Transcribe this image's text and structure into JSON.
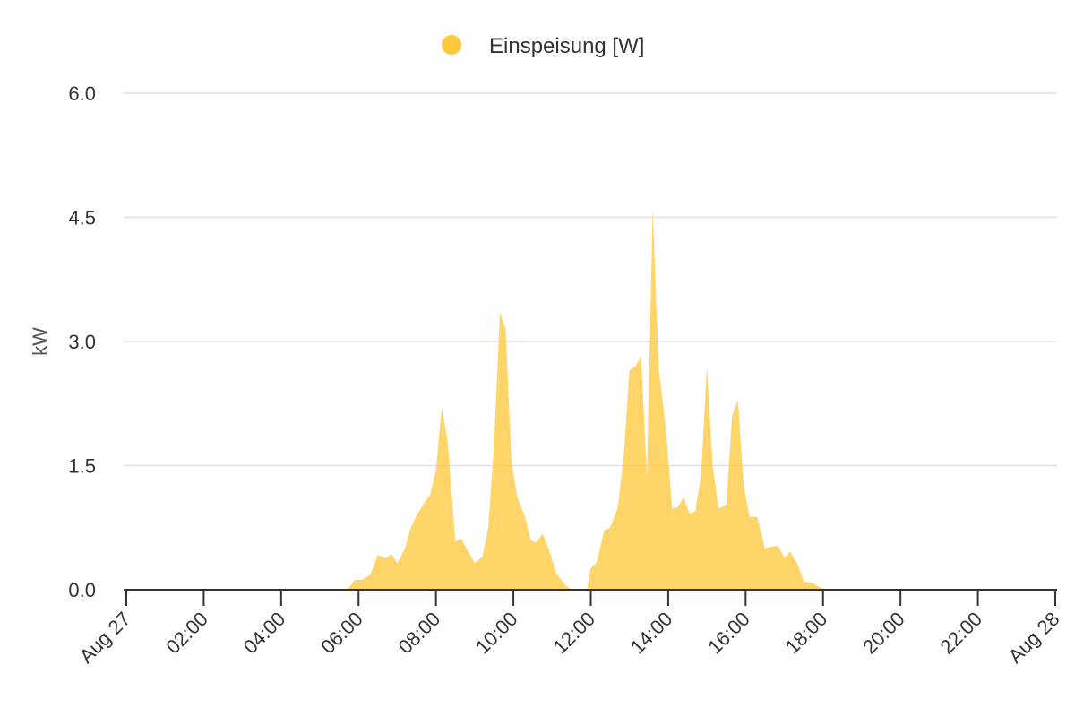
{
  "chart_data": {
    "type": "area",
    "title": "",
    "xlabel": "",
    "ylabel": "kW",
    "ylim": [
      0,
      6
    ],
    "grid": true,
    "legend": {
      "placement": "top-center"
    },
    "y_ticks": [
      "0.0",
      "1.5",
      "3.0",
      "4.5",
      "6.0"
    ],
    "y_tick_values": [
      0,
      1.5,
      3,
      4.5,
      6
    ],
    "x_ticks": [
      "Aug 27",
      "02:00",
      "04:00",
      "06:00",
      "08:00",
      "10:00",
      "12:00",
      "14:00",
      "16:00",
      "18:00",
      "20:00",
      "22:00",
      "Aug 28"
    ],
    "x_tick_hours": [
      0,
      2,
      4,
      6,
      8,
      10,
      12,
      14,
      16,
      18,
      20,
      22,
      24
    ],
    "xlim_hours": [
      0,
      24
    ],
    "series": [
      {
        "name": "Einspeisung [W]",
        "color": "#ffc83d",
        "x_hours": [
          0,
          5.5,
          5.75,
          5.9,
          6.1,
          6.3,
          6.5,
          6.7,
          6.85,
          7.0,
          7.2,
          7.35,
          7.5,
          7.7,
          7.85,
          8.0,
          8.15,
          8.3,
          8.5,
          8.65,
          8.85,
          9.0,
          9.2,
          9.35,
          9.5,
          9.65,
          9.8,
          9.95,
          10.1,
          10.3,
          10.45,
          10.6,
          10.75,
          10.95,
          11.1,
          11.35,
          11.5,
          11.9,
          12.0,
          12.15,
          12.35,
          12.5,
          12.7,
          12.85,
          13.0,
          13.15,
          13.3,
          13.45,
          13.6,
          13.75,
          13.95,
          14.1,
          14.25,
          14.4,
          14.55,
          14.7,
          14.85,
          15.0,
          15.15,
          15.3,
          15.5,
          15.65,
          15.8,
          15.95,
          16.1,
          16.3,
          16.5,
          16.65,
          16.85,
          17.0,
          17.15,
          17.35,
          17.5,
          17.75,
          17.9,
          18.1,
          18.3,
          24.0
        ],
        "values": [
          0,
          0,
          0.02,
          0.12,
          0.12,
          0.18,
          0.42,
          0.38,
          0.43,
          0.32,
          0.5,
          0.75,
          0.9,
          1.05,
          1.15,
          1.45,
          2.2,
          1.8,
          0.58,
          0.62,
          0.45,
          0.32,
          0.4,
          0.75,
          1.75,
          3.35,
          3.15,
          1.55,
          1.12,
          0.88,
          0.6,
          0.57,
          0.68,
          0.45,
          0.2,
          0.05,
          0,
          0,
          0.26,
          0.33,
          0.72,
          0.75,
          1.0,
          1.6,
          2.65,
          2.7,
          2.82,
          1.35,
          4.6,
          2.7,
          1.9,
          0.98,
          1.0,
          1.12,
          0.92,
          0.95,
          1.38,
          2.7,
          1.5,
          0.98,
          1.02,
          2.1,
          2.3,
          1.25,
          0.88,
          0.88,
          0.5,
          0.52,
          0.53,
          0.38,
          0.46,
          0.3,
          0.1,
          0.08,
          0.03,
          0,
          0,
          0
        ]
      }
    ]
  }
}
